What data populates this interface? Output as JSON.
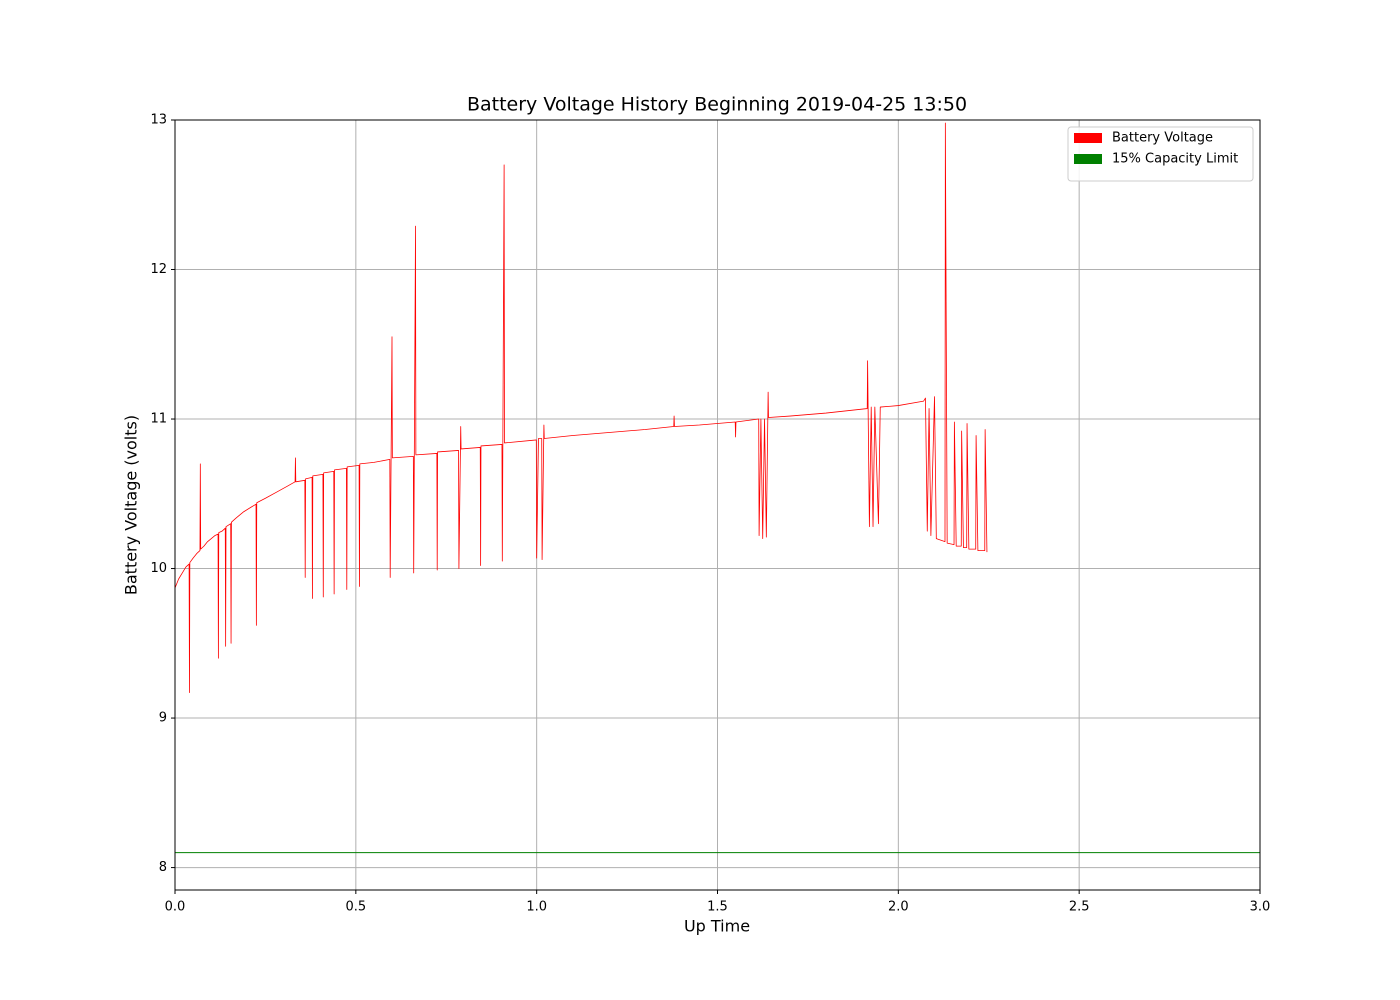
{
  "chart_data": {
    "type": "line",
    "title": "Battery Voltage History Beginning 2019-04-25 13:50",
    "x_label": "Up Time",
    "y_label": "Battery Voltage (volts)",
    "xlim": [
      0,
      3.0
    ],
    "xticks": [
      {
        "value": 0,
        "label": "0.0"
      },
      0.5,
      {
        "value": 1,
        "label": "1.0"
      },
      1.5,
      {
        "value": 2,
        "label": "2.0"
      },
      2.5,
      {
        "value": 3,
        "label": "3.0"
      }
    ],
    "ylim": [
      7.85,
      13
    ],
    "yticks": [
      8,
      9,
      10,
      11,
      12,
      13
    ],
    "grid": true,
    "legend": "upper right",
    "series": [
      {
        "name": "Battery Voltage",
        "color": "#ff0000",
        "x": [
          0,
          0.01,
          0.02,
          0.03,
          0.039,
          0.04,
          0.041,
          0.05,
          0.06,
          0.069,
          0.07,
          0.071,
          0.08,
          0.09,
          0.1,
          0.11,
          0.119,
          0.12,
          0.121,
          0.13,
          0.139,
          0.14,
          0.141,
          0.154,
          0.155,
          0.156,
          0.17,
          0.19,
          0.21,
          0.224,
          0.225,
          0.226,
          0.25,
          0.28,
          0.31,
          0.332,
          0.333,
          0.334,
          0.359,
          0.36,
          0.361,
          0.379,
          0.38,
          0.381,
          0.409,
          0.41,
          0.411,
          0.439,
          0.44,
          0.441,
          0.474,
          0.475,
          0.476,
          0.509,
          0.51,
          0.511,
          0.55,
          0.594,
          0.595,
          0.6,
          0.601,
          0.659,
          0.66,
          0.665,
          0.666,
          0.724,
          0.725,
          0.726,
          0.784,
          0.785,
          0.79,
          0.791,
          0.844,
          0.845,
          0.846,
          0.904,
          0.905,
          0.91,
          0.911,
          0.999,
          1.0,
          1.005,
          1.014,
          1.015,
          1.02,
          1.021,
          1.1,
          1.2,
          1.3,
          1.379,
          1.38,
          1.381,
          1.45,
          1.549,
          1.55,
          1.551,
          1.614,
          1.615,
          1.62,
          1.625,
          1.63,
          1.635,
          1.64,
          1.641,
          1.7,
          1.8,
          1.914,
          1.915,
          1.92,
          1.925,
          1.93,
          1.935,
          1.945,
          1.95,
          2.0,
          2.07,
          2.075,
          2.08,
          2.085,
          2.09,
          2.1,
          2.105,
          2.129,
          2.13,
          2.135,
          2.154,
          2.155,
          2.16,
          2.174,
          2.175,
          2.18,
          2.189,
          2.19,
          2.195,
          2.214,
          2.215,
          2.22,
          2.239,
          2.24,
          2.245
        ],
        "values": [
          9.87,
          9.93,
          9.97,
          10.01,
          10.03,
          9.17,
          10.04,
          10.07,
          10.1,
          10.12,
          10.7,
          10.13,
          10.15,
          10.18,
          10.2,
          10.22,
          10.23,
          9.4,
          10.24,
          10.25,
          10.27,
          9.48,
          10.28,
          10.3,
          9.5,
          10.31,
          10.34,
          10.38,
          10.41,
          10.43,
          9.62,
          10.44,
          10.47,
          10.51,
          10.55,
          10.58,
          10.74,
          10.58,
          10.59,
          9.94,
          10.6,
          10.61,
          9.8,
          10.62,
          10.63,
          9.81,
          10.64,
          10.65,
          9.83,
          10.66,
          10.67,
          9.86,
          10.68,
          10.69,
          9.88,
          10.7,
          10.71,
          10.73,
          9.94,
          11.55,
          10.74,
          10.75,
          9.97,
          12.29,
          10.76,
          10.77,
          9.99,
          10.78,
          10.79,
          10.0,
          10.95,
          10.8,
          10.81,
          10.02,
          10.82,
          10.83,
          10.05,
          12.7,
          10.84,
          10.86,
          10.07,
          10.87,
          10.87,
          10.06,
          10.96,
          10.87,
          10.89,
          10.91,
          10.93,
          10.95,
          11.02,
          10.95,
          10.96,
          10.98,
          10.88,
          10.98,
          11.0,
          10.22,
          11.0,
          10.2,
          11.0,
          10.21,
          11.18,
          11.01,
          11.02,
          11.04,
          11.07,
          11.39,
          10.28,
          11.08,
          10.28,
          11.08,
          10.3,
          11.08,
          11.09,
          11.12,
          11.14,
          10.25,
          11.07,
          10.22,
          11.15,
          10.2,
          10.18,
          12.98,
          10.17,
          10.16,
          10.98,
          10.15,
          10.15,
          10.92,
          10.14,
          10.14,
          10.97,
          10.13,
          10.13,
          10.89,
          10.12,
          10.12,
          10.93,
          10.11
        ]
      },
      {
        "name": "15% Capacity Limit",
        "color": "#008000",
        "x": [
          0,
          3.0
        ],
        "values": [
          8.1,
          8.1
        ]
      }
    ]
  }
}
